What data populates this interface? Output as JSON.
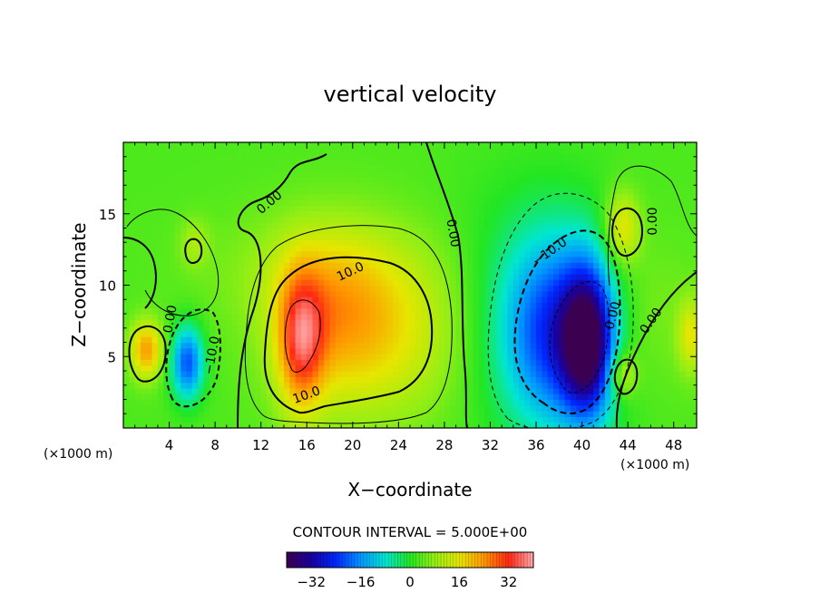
{
  "chart_data": {
    "type": "heatmap",
    "title": "vertical velocity",
    "xlabel": "X−coordinate",
    "ylabel": "Z−coordinate",
    "x_unit_left": "(×1000 m)",
    "x_unit_right": "(×1000 m)",
    "xlim": [
      0,
      50
    ],
    "ylim": [
      0,
      20
    ],
    "x_ticks": [
      4,
      8,
      12,
      16,
      20,
      24,
      28,
      32,
      36,
      40,
      44,
      48
    ],
    "y_ticks": [
      5,
      10,
      15
    ],
    "contour_interval_text": "CONTOUR INTERVAL = 5.000E+00",
    "contour_labels": [
      "0.00",
      "10.0",
      "0.00",
      "10.0",
      "0.00",
      "−10.0",
      "0.00",
      "0.00",
      "−10.0",
      "0.00",
      "10.0"
    ],
    "colorbar": {
      "range": [
        -40,
        40
      ],
      "ticks": [
        -32,
        -16,
        0,
        16,
        32
      ],
      "tick_labels": [
        "−32",
        "−16",
        "0",
        "16",
        "32"
      ]
    },
    "features": [
      {
        "x": 15.5,
        "z": 6,
        "value": 22,
        "sx": 1.4,
        "sz": 3.4
      },
      {
        "x": 18,
        "z": 8,
        "value": 10,
        "sx": 3.5,
        "sz": 4
      },
      {
        "x": 22.5,
        "z": 6.5,
        "value": 12,
        "sx": 5.5,
        "sz": 4.2
      },
      {
        "x": 17.5,
        "z": 11,
        "value": 5,
        "sx": 7,
        "sz": 3
      },
      {
        "x": 40.5,
        "z": 6,
        "value": -34,
        "sx": 1.5,
        "sz": 3.5
      },
      {
        "x": 38,
        "z": 6.5,
        "value": -22,
        "sx": 3.2,
        "sz": 4.5
      },
      {
        "x": 36,
        "z": 8,
        "value": -8,
        "sx": 5,
        "sz": 6
      },
      {
        "x": 5.6,
        "z": 4.6,
        "value": -24,
        "sx": 1,
        "sz": 1.8
      },
      {
        "x": 2,
        "z": 5.5,
        "value": 20,
        "sx": 1,
        "sz": 1.4
      },
      {
        "x": 43.5,
        "z": 14,
        "value": 14,
        "sx": 1.1,
        "sz": 1.8
      },
      {
        "x": 43.5,
        "z": 3.8,
        "value": 12,
        "sx": 0.9,
        "sz": 1.2
      },
      {
        "x": 49.5,
        "z": 6.5,
        "value": 12,
        "sx": 0.8,
        "sz": 1.8
      },
      {
        "x": 6.2,
        "z": 13,
        "value": 6,
        "sx": 0.9,
        "sz": 1.2
      },
      {
        "x": 45.5,
        "z": 8,
        "value": 4,
        "sx": 3,
        "sz": 4
      }
    ]
  },
  "colors": {
    "background_mid": "#22e622",
    "contour": "#000000"
  }
}
